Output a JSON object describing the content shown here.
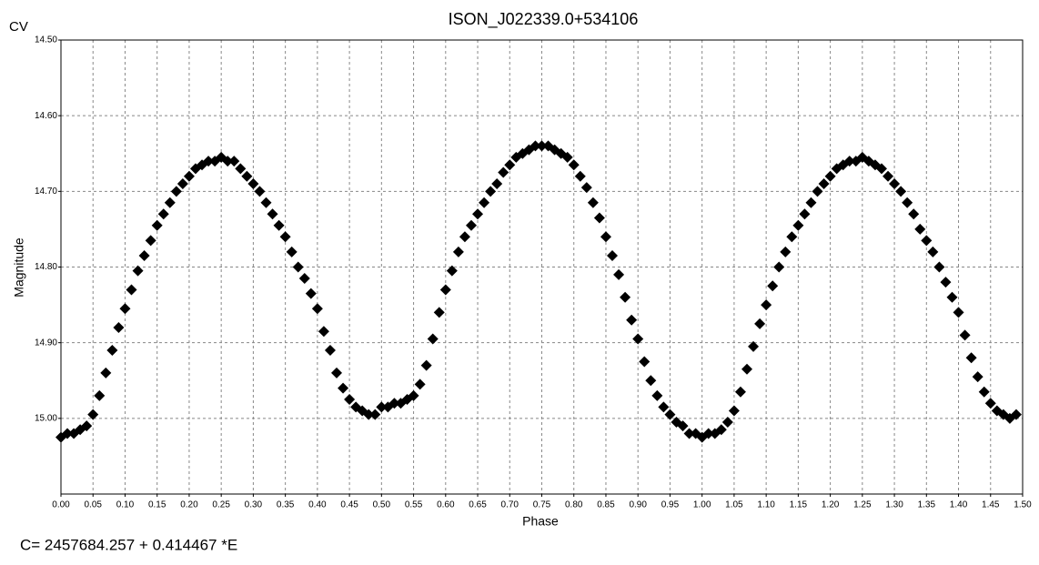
{
  "chart_data": {
    "type": "scatter",
    "title": "ISON_J022339.0+534106",
    "corner_label": "CV",
    "xlabel": "Phase",
    "ylabel": "Magnitude",
    "color": "#000000",
    "grid": true,
    "y_inverted": true,
    "xlim": [
      0,
      1.5
    ],
    "ylim": [
      14.5,
      15.1
    ],
    "xticks": [
      {
        "value": 0,
        "label": "0.00"
      },
      0.05,
      {
        "value": 0.1,
        "label": "0.10"
      },
      0.15,
      {
        "value": 0.2,
        "label": "0.20"
      },
      0.25,
      {
        "value": 0.3,
        "label": "0.30"
      },
      0.35,
      {
        "value": 0.4,
        "label": "0.40"
      },
      0.45,
      {
        "value": 0.5,
        "label": "0.50"
      },
      0.55,
      {
        "value": 0.6,
        "label": "0.60"
      },
      0.65,
      {
        "value": 0.7,
        "label": "0.70"
      },
      0.75,
      {
        "value": 0.8,
        "label": "0.80"
      },
      0.85,
      {
        "value": 0.9,
        "label": "0.90"
      },
      0.95,
      {
        "value": 1,
        "label": "1.00"
      },
      1.05,
      {
        "value": 1.1,
        "label": "1.10"
      },
      1.15,
      {
        "value": 1.2,
        "label": "1.20"
      },
      1.25,
      {
        "value": 1.3,
        "label": "1.30"
      },
      1.35,
      {
        "value": 1.4,
        "label": "1.40"
      },
      1.45,
      {
        "value": 1.5,
        "label": "1.50"
      }
    ],
    "yticks": [
      {
        "value": 14.5,
        "label": "14.50"
      },
      {
        "value": 14.6,
        "label": "14.60"
      },
      {
        "value": 14.7,
        "label": "14.70"
      },
      {
        "value": 14.8,
        "label": "14.80"
      },
      {
        "value": 14.9,
        "label": "14.90"
      },
      {
        "value": 15,
        "label": "15.00"
      }
    ],
    "x": [
      0,
      0.01,
      0.02,
      0.03,
      0.04,
      0.05,
      0.06,
      0.07,
      0.08,
      0.09,
      0.1,
      0.11,
      0.12,
      0.13,
      0.14,
      0.15,
      0.16,
      0.17,
      0.18,
      0.19,
      0.2,
      0.21,
      0.22,
      0.23,
      0.24,
      0.25,
      0.26,
      0.27,
      0.28,
      0.29,
      0.3,
      0.31,
      0.32,
      0.33,
      0.34,
      0.35,
      0.36,
      0.37,
      0.38,
      0.39,
      0.4,
      0.41,
      0.42,
      0.43,
      0.44,
      0.45,
      0.46,
      0.47,
      0.48,
      0.49,
      0.5,
      0.51,
      0.52,
      0.53,
      0.54,
      0.55,
      0.56,
      0.57,
      0.58,
      0.59,
      0.6,
      0.61,
      0.62,
      0.63,
      0.64,
      0.65,
      0.66,
      0.67,
      0.68,
      0.69,
      0.7,
      0.71,
      0.72,
      0.73,
      0.74,
      0.75,
      0.76,
      0.77,
      0.78,
      0.79,
      0.8,
      0.81,
      0.82,
      0.83,
      0.84,
      0.85,
      0.86,
      0.87,
      0.88,
      0.89,
      0.9,
      0.91,
      0.92,
      0.93,
      0.94,
      0.95,
      0.96,
      0.97,
      0.98,
      0.99,
      1,
      1.01,
      1.02,
      1.03,
      1.04,
      1.05,
      1.06,
      1.07,
      1.08,
      1.09,
      1.1,
      1.11,
      1.12,
      1.13,
      1.14,
      1.15,
      1.16,
      1.17,
      1.18,
      1.19,
      1.2,
      1.21,
      1.22,
      1.23,
      1.24,
      1.25,
      1.26,
      1.27,
      1.28,
      1.29,
      1.3,
      1.31,
      1.32,
      1.33,
      1.34,
      1.35,
      1.36,
      1.37,
      1.38,
      1.39,
      1.4,
      1.41,
      1.42,
      1.43,
      1.44,
      1.45,
      1.46,
      1.47,
      1.48,
      1.49
    ],
    "values": [
      15.025,
      15.02,
      15.02,
      15.015,
      15.01,
      14.995,
      14.97,
      14.94,
      14.91,
      14.88,
      14.855,
      14.83,
      14.805,
      14.785,
      14.765,
      14.745,
      14.73,
      14.715,
      14.7,
      14.69,
      14.68,
      14.67,
      14.665,
      14.66,
      14.66,
      14.655,
      14.66,
      14.66,
      14.67,
      14.68,
      14.69,
      14.7,
      14.715,
      14.73,
      14.745,
      14.76,
      14.78,
      14.8,
      14.815,
      14.835,
      14.855,
      14.885,
      14.91,
      14.94,
      14.96,
      14.975,
      14.985,
      14.99,
      14.995,
      14.995,
      14.985,
      14.985,
      14.98,
      14.98,
      14.975,
      14.97,
      14.955,
      14.93,
      14.895,
      14.86,
      14.83,
      14.805,
      14.78,
      14.76,
      14.745,
      14.73,
      14.715,
      14.7,
      14.69,
      14.675,
      14.665,
      14.655,
      14.65,
      14.645,
      14.64,
      14.64,
      14.64,
      14.645,
      14.65,
      14.655,
      14.665,
      14.68,
      14.695,
      14.715,
      14.735,
      14.76,
      14.785,
      14.81,
      14.84,
      14.87,
      14.895,
      14.925,
      14.95,
      14.97,
      14.985,
      14.995,
      15.005,
      15.01,
      15.02,
      15.02,
      15.025,
      15.02,
      15.02,
      15.015,
      15.005,
      14.99,
      14.965,
      14.935,
      14.905,
      14.875,
      14.85,
      14.825,
      14.8,
      14.78,
      14.76,
      14.745,
      14.73,
      14.715,
      14.7,
      14.69,
      14.68,
      14.67,
      14.665,
      14.66,
      14.66,
      14.655,
      14.66,
      14.665,
      14.67,
      14.68,
      14.69,
      14.7,
      14.715,
      14.73,
      14.75,
      14.765,
      14.78,
      14.8,
      14.82,
      14.84,
      14.86,
      14.89,
      14.92,
      14.945,
      14.965,
      14.98,
      14.99,
      14.995,
      15,
      14.995
    ]
  },
  "footer": "C= 2457684.257 + 0.414467 *E"
}
